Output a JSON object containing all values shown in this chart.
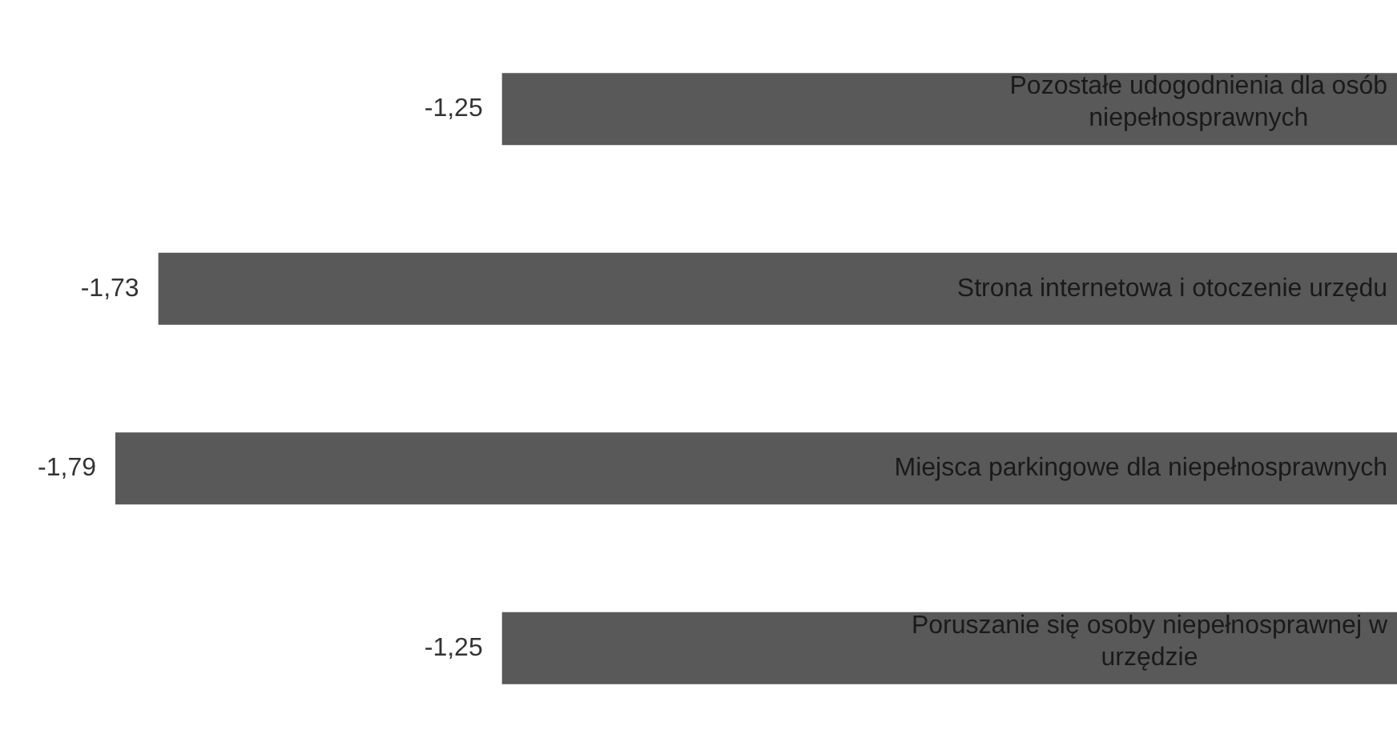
{
  "chart_data": {
    "type": "bar",
    "orientation": "horizontal",
    "categories": [
      "Pozostałe udogodnienia dla osób niepełnosprawnych",
      "Strona internetowa i otoczenie urzędu",
      "Miejsca parkingowe dla niepełnosprawnych",
      "Poruszanie się osoby niepełnosprawnej w urzędzie"
    ],
    "values": [
      -1.25,
      -1.73,
      -1.79,
      -1.25
    ],
    "value_labels": [
      "-1,25",
      "-1,73",
      "-1,79",
      "-1,25"
    ],
    "color": "#595959",
    "data_labels": true,
    "legend": false
  }
}
